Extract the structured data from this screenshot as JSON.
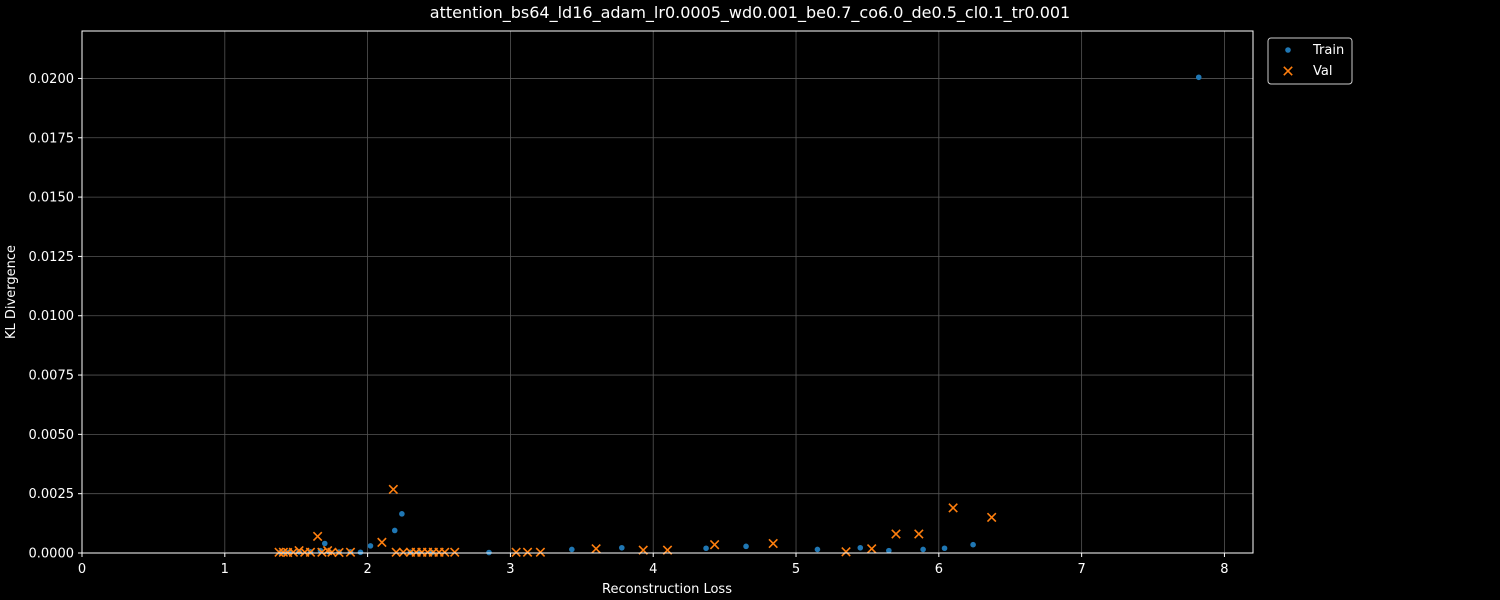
{
  "chart_data": {
    "type": "scatter",
    "title": "attention_bs64_ld16_adam_lr0.0005_wd0.001_be0.7_co6.0_de0.5_cl0.1_tr0.001",
    "xlabel": "Reconstruction Loss",
    "ylabel": "KL Divergence",
    "xlim": [
      0,
      8.2
    ],
    "ylim": [
      0,
      0.022
    ],
    "x_ticks": [
      0,
      1,
      2,
      3,
      4,
      5,
      6,
      7,
      8
    ],
    "y_ticks": [
      0.0,
      0.0025,
      0.005,
      0.0075,
      0.01,
      0.0125,
      0.015,
      0.0175,
      0.02
    ],
    "x_tick_labels": [
      "0",
      "1",
      "2",
      "3",
      "4",
      "5",
      "6",
      "7",
      "8"
    ],
    "y_tick_labels": [
      "0.0000",
      "0.0025",
      "0.0050",
      "0.0075",
      "0.0100",
      "0.0125",
      "0.0150",
      "0.0175",
      "0.0200"
    ],
    "grid": true,
    "legend_position": "upper right, outside plot",
    "series": [
      {
        "name": "Train",
        "marker": "circle",
        "color": "#1f77b4",
        "points": [
          [
            1.39,
            2e-05
          ],
          [
            1.42,
            2e-05
          ],
          [
            1.45,
            3e-05
          ],
          [
            1.52,
            5e-05
          ],
          [
            1.6,
            5e-05
          ],
          [
            1.67,
            0.0001
          ],
          [
            1.7,
            0.0004
          ],
          [
            1.73,
            5e-05
          ],
          [
            1.8,
            4e-05
          ],
          [
            1.88,
            5e-05
          ],
          [
            1.95,
            3e-05
          ],
          [
            2.02,
            0.0003
          ],
          [
            2.19,
            0.00095
          ],
          [
            2.24,
            0.00165
          ],
          [
            2.3,
            3e-05
          ],
          [
            2.36,
            2e-05
          ],
          [
            2.45,
            2e-05
          ],
          [
            2.85,
            2e-05
          ],
          [
            3.43,
            0.00015
          ],
          [
            3.78,
            0.00022
          ],
          [
            4.37,
            0.0002
          ],
          [
            4.65,
            0.00028
          ],
          [
            5.15,
            0.00015
          ],
          [
            5.45,
            0.00022
          ],
          [
            5.65,
            0.0001
          ],
          [
            5.89,
            0.00015
          ],
          [
            6.04,
            0.0002
          ],
          [
            6.24,
            0.00035
          ],
          [
            7.82,
            0.02005
          ]
        ]
      },
      {
        "name": "Val",
        "marker": "x",
        "color": "#ff7f0e",
        "points": [
          [
            1.38,
            3e-05
          ],
          [
            1.41,
            3e-05
          ],
          [
            1.44,
            2e-05
          ],
          [
            1.48,
            3e-05
          ],
          [
            1.52,
            0.0001
          ],
          [
            1.56,
            3e-05
          ],
          [
            1.6,
            3e-05
          ],
          [
            1.65,
            0.0007
          ],
          [
            1.68,
            3e-05
          ],
          [
            1.72,
            0.0001
          ],
          [
            1.75,
            3e-05
          ],
          [
            1.8,
            2e-05
          ],
          [
            1.88,
            3e-05
          ],
          [
            2.1,
            0.00045
          ],
          [
            2.18,
            0.00268
          ],
          [
            2.2,
            3e-05
          ],
          [
            2.25,
            3e-05
          ],
          [
            2.3,
            3e-05
          ],
          [
            2.34,
            3e-05
          ],
          [
            2.38,
            3e-05
          ],
          [
            2.42,
            3e-05
          ],
          [
            2.46,
            3e-05
          ],
          [
            2.5,
            3e-05
          ],
          [
            2.54,
            3e-05
          ],
          [
            2.61,
            3e-05
          ],
          [
            3.04,
            3e-05
          ],
          [
            3.12,
            3e-05
          ],
          [
            3.21,
            3e-05
          ],
          [
            3.6,
            0.00018
          ],
          [
            3.93,
            0.00012
          ],
          [
            4.1,
            0.00012
          ],
          [
            4.43,
            0.00035
          ],
          [
            4.84,
            0.0004
          ],
          [
            5.35,
            5e-05
          ],
          [
            5.53,
            0.00018
          ],
          [
            5.7,
            0.0008
          ],
          [
            5.86,
            0.0008
          ],
          [
            6.1,
            0.0019
          ],
          [
            6.37,
            0.0015
          ]
        ]
      }
    ]
  }
}
